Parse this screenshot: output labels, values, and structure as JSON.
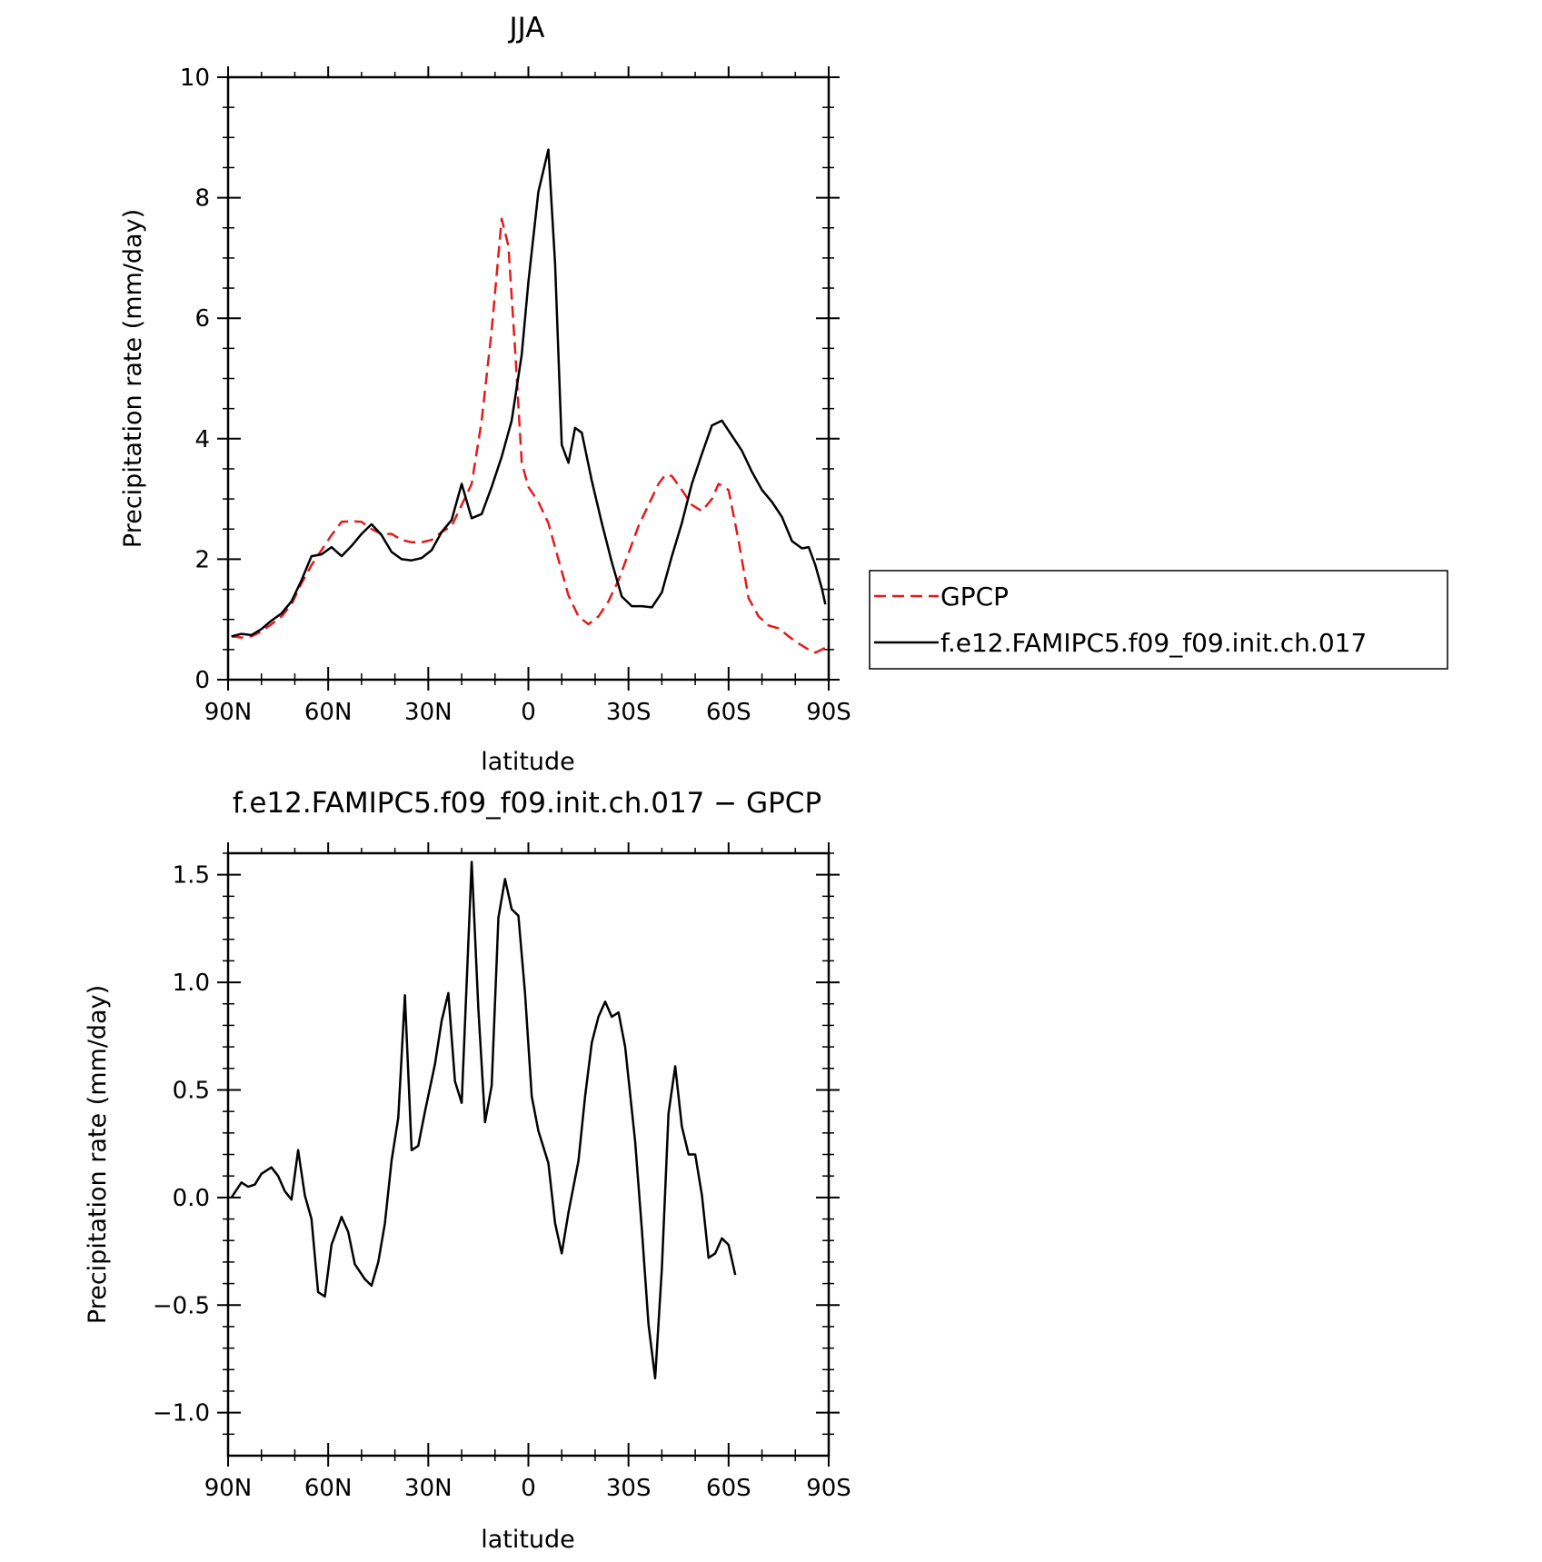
{
  "chart_data": [
    {
      "type": "line",
      "title": "JJA",
      "xlabel": "latitude",
      "ylabel": "Precipitation rate (mm/day)",
      "xlim": [
        90,
        -90
      ],
      "ylim": [
        0,
        10
      ],
      "x_ticks": [
        {
          "value": 90,
          "label": "90N"
        },
        {
          "value": 60,
          "label": "60N"
        },
        {
          "value": 30,
          "label": "30N"
        },
        {
          "value": 0,
          "label": "0"
        },
        {
          "value": -30,
          "label": "30S"
        },
        {
          "value": -60,
          "label": "60S"
        },
        {
          "value": -90,
          "label": "90S"
        }
      ],
      "y_ticks": [
        {
          "value": 0,
          "label": "0"
        },
        {
          "value": 2,
          "label": "2"
        },
        {
          "value": 4,
          "label": "4"
        },
        {
          "value": 6,
          "label": "6"
        },
        {
          "value": 8,
          "label": "8"
        },
        {
          "value": 10,
          "label": "10"
        }
      ],
      "legend_position": "right",
      "series": [
        {
          "name": "GPCP",
          "color": "#e41a1c",
          "dash": "dashed",
          "points": [
            [
              89,
              0.72
            ],
            [
              86,
              0.7
            ],
            [
              83,
              0.72
            ],
            [
              80,
              0.8
            ],
            [
              77,
              0.92
            ],
            [
              74,
              1.05
            ],
            [
              71,
              1.25
            ],
            [
              68,
              1.6
            ],
            [
              65,
              1.9
            ],
            [
              62,
              2.15
            ],
            [
              59,
              2.4
            ],
            [
              56,
              2.62
            ],
            [
              53,
              2.63
            ],
            [
              50,
              2.62
            ],
            [
              47,
              2.5
            ],
            [
              44,
              2.42
            ],
            [
              41,
              2.42
            ],
            [
              38,
              2.32
            ],
            [
              35,
              2.28
            ],
            [
              32,
              2.28
            ],
            [
              29,
              2.32
            ],
            [
              26,
              2.45
            ],
            [
              23,
              2.55
            ],
            [
              20,
              2.9
            ],
            [
              17,
              3.25
            ],
            [
              14,
              4.3
            ],
            [
              11,
              5.8
            ],
            [
              8,
              7.65
            ],
            [
              6,
              7.2
            ],
            [
              4,
              5.5
            ],
            [
              2,
              3.6
            ],
            [
              0,
              3.2
            ],
            [
              -3,
              2.95
            ],
            [
              -6,
              2.6
            ],
            [
              -9,
              2.0
            ],
            [
              -12,
              1.4
            ],
            [
              -15,
              1.05
            ],
            [
              -18,
              0.92
            ],
            [
              -21,
              1.05
            ],
            [
              -24,
              1.3
            ],
            [
              -27,
              1.65
            ],
            [
              -30,
              2.1
            ],
            [
              -33,
              2.55
            ],
            [
              -36,
              2.9
            ],
            [
              -39,
              3.25
            ],
            [
              -41,
              3.4
            ],
            [
              -43,
              3.38
            ],
            [
              -46,
              3.15
            ],
            [
              -49,
              2.9
            ],
            [
              -52,
              2.8
            ],
            [
              -55,
              3.0
            ],
            [
              -57,
              3.25
            ],
            [
              -60,
              3.15
            ],
            [
              -63,
              2.3
            ],
            [
              -66,
              1.35
            ],
            [
              -69,
              1.05
            ],
            [
              -72,
              0.9
            ],
            [
              -75,
              0.85
            ],
            [
              -78,
              0.72
            ],
            [
              -81,
              0.6
            ],
            [
              -84,
              0.5
            ],
            [
              -86,
              0.45
            ],
            [
              -89,
              0.53
            ]
          ]
        },
        {
          "name": "f.e12.FAMIPC5.f09_f09.init.ch.017",
          "color": "#000000",
          "dash": "solid",
          "points": [
            [
              89,
              0.72
            ],
            [
              86,
              0.76
            ],
            [
              83,
              0.74
            ],
            [
              80,
              0.84
            ],
            [
              77,
              0.98
            ],
            [
              74,
              1.1
            ],
            [
              71,
              1.3
            ],
            [
              68,
              1.65
            ],
            [
              65,
              2.05
            ],
            [
              62,
              2.08
            ],
            [
              59,
              2.2
            ],
            [
              56,
              2.05
            ],
            [
              53,
              2.22
            ],
            [
              50,
              2.42
            ],
            [
              47,
              2.58
            ],
            [
              44,
              2.4
            ],
            [
              41,
              2.12
            ],
            [
              38,
              2.0
            ],
            [
              35,
              1.98
            ],
            [
              32,
              2.02
            ],
            [
              29,
              2.15
            ],
            [
              26,
              2.45
            ],
            [
              23,
              2.65
            ],
            [
              20,
              3.25
            ],
            [
              17,
              2.68
            ],
            [
              14,
              2.75
            ],
            [
              11,
              3.2
            ],
            [
              8,
              3.7
            ],
            [
              5,
              4.3
            ],
            [
              2,
              5.4
            ],
            [
              0,
              6.6
            ],
            [
              -3,
              8.1
            ],
            [
              -6,
              8.8
            ],
            [
              -8,
              6.9
            ],
            [
              -10,
              3.9
            ],
            [
              -12,
              3.6
            ],
            [
              -14,
              4.18
            ],
            [
              -16,
              4.1
            ],
            [
              -19,
              3.3
            ],
            [
              -22,
              2.6
            ],
            [
              -25,
              1.95
            ],
            [
              -28,
              1.38
            ],
            [
              -31,
              1.22
            ],
            [
              -34,
              1.22
            ],
            [
              -37,
              1.2
            ],
            [
              -40,
              1.45
            ],
            [
              -43,
              2.05
            ],
            [
              -46,
              2.6
            ],
            [
              -49,
              3.25
            ],
            [
              -52,
              3.75
            ],
            [
              -55,
              4.22
            ],
            [
              -58,
              4.3
            ],
            [
              -61,
              4.05
            ],
            [
              -64,
              3.8
            ],
            [
              -67,
              3.45
            ],
            [
              -70,
              3.15
            ],
            [
              -73,
              2.95
            ],
            [
              -76,
              2.7
            ],
            [
              -79,
              2.3
            ],
            [
              -82,
              2.18
            ],
            [
              -84,
              2.2
            ],
            [
              -86,
              1.9
            ],
            [
              -88,
              1.5
            ],
            [
              -89,
              1.25
            ]
          ]
        }
      ]
    },
    {
      "type": "line",
      "title": "f.e12.FAMIPC5.f09_f09.init.ch.017 − GPCP",
      "xlabel": "latitude",
      "ylabel": "Precipitation rate (mm/day)",
      "xlim": [
        90,
        -90
      ],
      "ylim": [
        -1.2,
        1.6
      ],
      "x_ticks": [
        {
          "value": 90,
          "label": "90N"
        },
        {
          "value": 60,
          "label": "60N"
        },
        {
          "value": 30,
          "label": "30N"
        },
        {
          "value": 0,
          "label": "0"
        },
        {
          "value": -30,
          "label": "30S"
        },
        {
          "value": -60,
          "label": "60S"
        },
        {
          "value": -90,
          "label": "90S"
        }
      ],
      "y_ticks": [
        {
          "value": -1.0,
          "label": "−1.0"
        },
        {
          "value": -0.5,
          "label": "−0.5"
        },
        {
          "value": 0.0,
          "label": "0.0"
        },
        {
          "value": 0.5,
          "label": "0.5"
        },
        {
          "value": 1.0,
          "label": "1.0"
        },
        {
          "value": 1.5,
          "label": "1.5"
        }
      ],
      "series": [
        {
          "color": "#000000",
          "dash": "solid",
          "points": [
            [
              89,
              0.0
            ],
            [
              86,
              0.07
            ],
            [
              84,
              0.05
            ],
            [
              82,
              0.06
            ],
            [
              80,
              0.11
            ],
            [
              77,
              0.14
            ],
            [
              75,
              0.1
            ],
            [
              73,
              0.03
            ],
            [
              71,
              -0.01
            ],
            [
              69,
              0.22
            ],
            [
              67,
              0.01
            ],
            [
              65,
              -0.1
            ],
            [
              63,
              -0.44
            ],
            [
              61,
              -0.46
            ],
            [
              59,
              -0.22
            ],
            [
              56,
              -0.09
            ],
            [
              54,
              -0.16
            ],
            [
              52,
              -0.31
            ],
            [
              49,
              -0.38
            ],
            [
              47,
              -0.41
            ],
            [
              45,
              -0.3
            ],
            [
              43,
              -0.12
            ],
            [
              41,
              0.17
            ],
            [
              39,
              0.37
            ],
            [
              37,
              0.94
            ],
            [
              35,
              0.22
            ],
            [
              33,
              0.24
            ],
            [
              31,
              0.4
            ],
            [
              28,
              0.62
            ],
            [
              26,
              0.82
            ],
            [
              24,
              0.95
            ],
            [
              22,
              0.54
            ],
            [
              20,
              0.44
            ],
            [
              17,
              1.56
            ],
            [
              15,
              0.88
            ],
            [
              13,
              0.35
            ],
            [
              11,
              0.52
            ],
            [
              9,
              1.3
            ],
            [
              7,
              1.48
            ],
            [
              5,
              1.34
            ],
            [
              3,
              1.31
            ],
            [
              1,
              0.95
            ],
            [
              -1,
              0.47
            ],
            [
              -3,
              0.31
            ],
            [
              -6,
              0.16
            ],
            [
              -8,
              -0.12
            ],
            [
              -10,
              -0.26
            ],
            [
              -12,
              -0.07
            ],
            [
              -15,
              0.17
            ],
            [
              -17,
              0.47
            ],
            [
              -19,
              0.72
            ],
            [
              -21,
              0.84
            ],
            [
              -23,
              0.91
            ],
            [
              -25,
              0.84
            ],
            [
              -27,
              0.86
            ],
            [
              -29,
              0.7
            ],
            [
              -32,
              0.26
            ],
            [
              -34,
              -0.15
            ],
            [
              -36,
              -0.59
            ],
            [
              -38,
              -0.84
            ],
            [
              -40,
              -0.33
            ],
            [
              -42,
              0.39
            ],
            [
              -44,
              0.61
            ],
            [
              -46,
              0.33
            ],
            [
              -48,
              0.2
            ],
            [
              -50,
              0.2
            ],
            [
              -52,
              0.01
            ],
            [
              -54,
              -0.28
            ],
            [
              -56,
              -0.26
            ],
            [
              -58,
              -0.19
            ],
            [
              -60,
              -0.22
            ],
            [
              -62,
              -0.36
            ]
          ]
        }
      ]
    }
  ]
}
